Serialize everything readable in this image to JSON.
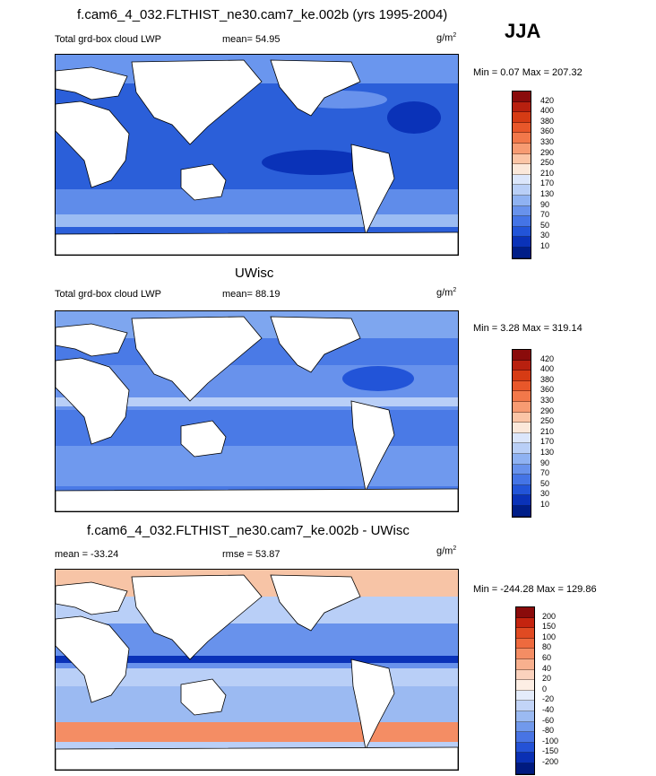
{
  "header": {
    "main_title": "f.cam6_4_032.FLTHIST_ne30.cam7_ke.002b (yrs 1995-2004)",
    "season": "JJA"
  },
  "panels": [
    {
      "id": "model",
      "title": "",
      "left_label": "Total grd-box cloud LWP",
      "stat_label": "mean=",
      "stat_value": "54.95",
      "unit": "g/m",
      "unit_exp": "2",
      "minmax": "Min =   0.07 Max = 207.32",
      "cbar_labels": [
        "420",
        "400",
        "380",
        "360",
        "330",
        "290",
        "250",
        "210",
        "170",
        "130",
        "90",
        "70",
        "50",
        "30",
        "10"
      ],
      "cbar_colors": [
        "#8a0b0b",
        "#b8200f",
        "#d63b14",
        "#e8572a",
        "#f2784a",
        "#f79b72",
        "#fbc5a6",
        "#fbe8da",
        "#dbe6fb",
        "#b9cff7",
        "#8fb2f2",
        "#6892ec",
        "#4474e6",
        "#2254d8",
        "#0a32b8",
        "#001e88"
      ]
    },
    {
      "id": "obs",
      "title": "UWisc",
      "left_label": "Total grd-box cloud LWP",
      "stat_label": "mean=",
      "stat_value": "88.19",
      "unit": "g/m",
      "unit_exp": "2",
      "minmax": "Min =   3.28 Max = 319.14",
      "cbar_labels": [
        "420",
        "400",
        "380",
        "360",
        "330",
        "290",
        "250",
        "210",
        "170",
        "130",
        "90",
        "70",
        "50",
        "30",
        "10"
      ],
      "cbar_colors": [
        "#8a0b0b",
        "#b8200f",
        "#d63b14",
        "#e8572a",
        "#f2784a",
        "#f79b72",
        "#fbc5a6",
        "#fbe8da",
        "#dbe6fb",
        "#b9cff7",
        "#8fb2f2",
        "#6892ec",
        "#4474e6",
        "#2254d8",
        "#0a32b8",
        "#001e88"
      ]
    },
    {
      "id": "diff",
      "title": "f.cam6_4_032.FLTHIST_ne30.cam7_ke.002b - UWisc",
      "left_label": "mean = -33.24",
      "stat_label": "rmse =",
      "stat_value": "53.87",
      "unit": "g/m",
      "unit_exp": "2",
      "minmax": "Min = -244.28 Max = 129.86",
      "cbar_labels": [
        "200",
        "150",
        "100",
        "80",
        "60",
        "40",
        "20",
        "0",
        "-20",
        "-40",
        "-60",
        "-80",
        "-100",
        "-150",
        "-200"
      ],
      "cbar_colors": [
        "#8a0b0b",
        "#c4240f",
        "#e04a22",
        "#ee6a3e",
        "#f48d64",
        "#f8b08e",
        "#fbd2bd",
        "#fdeee4",
        "#e4ecfb",
        "#c2d4f7",
        "#9bbaf2",
        "#7199ec",
        "#4874e4",
        "#2452d6",
        "#0a30b4",
        "#001a80"
      ]
    }
  ],
  "chart_data": [
    {
      "type": "heatmap",
      "title": "",
      "subtitle": "Total grd-box cloud LWP",
      "mean": 54.95,
      "min": 0.07,
      "max": 207.32,
      "unit": "g/m2",
      "season": "JJA",
      "levels": [
        10,
        30,
        50,
        70,
        90,
        130,
        170,
        210,
        250,
        290,
        330,
        360,
        380,
        400,
        420
      ]
    },
    {
      "type": "heatmap",
      "title": "UWisc",
      "subtitle": "Total grd-box cloud LWP",
      "mean": 88.19,
      "min": 3.28,
      "max": 319.14,
      "unit": "g/m2",
      "season": "JJA",
      "levels": [
        10,
        30,
        50,
        70,
        90,
        130,
        170,
        210,
        250,
        290,
        330,
        360,
        380,
        400,
        420
      ]
    },
    {
      "type": "heatmap",
      "title": "f.cam6_4_032.FLTHIST_ne30.cam7_ke.002b - UWisc",
      "mean": -33.24,
      "rmse": 53.87,
      "min": -244.28,
      "max": 129.86,
      "unit": "g/m2",
      "season": "JJA",
      "levels": [
        -200,
        -150,
        -100,
        -80,
        -60,
        -40,
        -20,
        0,
        20,
        40,
        60,
        80,
        100,
        150,
        200
      ]
    }
  ]
}
